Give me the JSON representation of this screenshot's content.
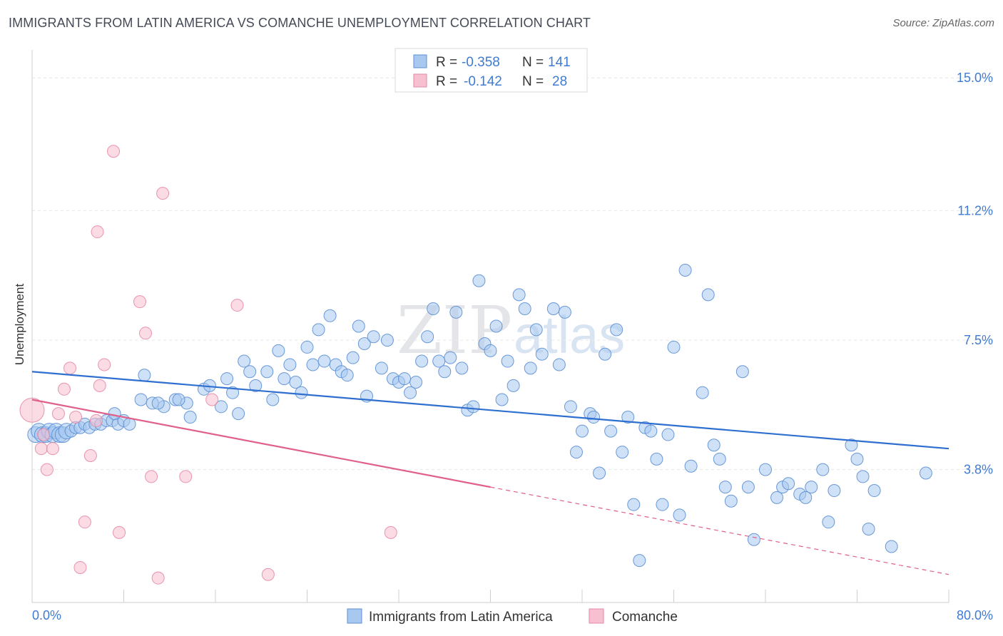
{
  "header": {
    "title": "IMMIGRANTS FROM LATIN AMERICA VS COMANCHE UNEMPLOYMENT CORRELATION CHART",
    "source": "Source: ZipAtlas.com"
  },
  "watermark": {
    "zip": "ZIP",
    "atlas": "atlas"
  },
  "stats": {
    "rows": [
      {
        "r_label": "R =",
        "r_value": "-0.358",
        "n_label": "N =",
        "n_value": "141"
      },
      {
        "r_label": "R =",
        "r_value": "-0.142",
        "n_label": "N =",
        "n_value": "28"
      }
    ]
  },
  "chart_data": {
    "type": "scatter",
    "title": "IMMIGRANTS FROM LATIN AMERICA VS COMANCHE UNEMPLOYMENT CORRELATION CHART",
    "xlabel": "",
    "ylabel": "Unemployment",
    "xlim": [
      0,
      80
    ],
    "ylim": [
      0,
      15.8
    ],
    "x_tick_labels": [
      "0.0%",
      "80.0%"
    ],
    "y_ticks": [
      3.8,
      7.5,
      11.2,
      15.0
    ],
    "y_tick_labels": [
      "3.8%",
      "7.5%",
      "11.2%",
      "15.0%"
    ],
    "grid": true,
    "legend_position": "bottom-center",
    "colors": {
      "blue_fill": "#a8c8f0",
      "blue_stroke": "#5b8fd4",
      "blue_line": "#2f6fcf",
      "pink_fill": "#f7c0d0",
      "pink_stroke": "#e58aa6",
      "pink_line": "#e0608a",
      "tick_text": "#3f7bd0"
    },
    "series": [
      {
        "name": "Immigrants from Latin America",
        "color": "blue",
        "trend": {
          "x0": 0,
          "y0": 6.6,
          "x1": 80,
          "y1": 4.4
        },
        "points": [
          [
            0.3,
            4.8
          ],
          [
            0.6,
            4.9
          ],
          [
            0.9,
            4.8
          ],
          [
            1.2,
            4.8
          ],
          [
            1.5,
            4.9
          ],
          [
            1.8,
            4.8
          ],
          [
            2.1,
            4.9
          ],
          [
            2.4,
            4.8
          ],
          [
            2.7,
            4.8
          ],
          [
            3.0,
            4.9
          ],
          [
            3.4,
            4.9
          ],
          [
            3.8,
            5.0
          ],
          [
            4.2,
            5.0
          ],
          [
            4.6,
            5.1
          ],
          [
            5.0,
            5.0
          ],
          [
            5.5,
            5.1
          ],
          [
            6.0,
            5.1
          ],
          [
            6.5,
            5.2
          ],
          [
            7.0,
            5.2
          ],
          [
            7.5,
            5.1
          ],
          [
            8.0,
            5.2
          ],
          [
            8.5,
            5.1
          ],
          [
            7.2,
            5.4
          ],
          [
            9.5,
            5.8
          ],
          [
            10.5,
            5.7
          ],
          [
            11.5,
            5.6
          ],
          [
            12.5,
            5.8
          ],
          [
            13.5,
            5.7
          ],
          [
            9.8,
            6.5
          ],
          [
            11.0,
            5.7
          ],
          [
            12.8,
            5.8
          ],
          [
            13.8,
            5.3
          ],
          [
            15.0,
            6.1
          ],
          [
            15.5,
            6.2
          ],
          [
            16.5,
            5.6
          ],
          [
            17.0,
            6.4
          ],
          [
            17.5,
            6.0
          ],
          [
            18.0,
            5.4
          ],
          [
            18.5,
            6.9
          ],
          [
            19.0,
            6.6
          ],
          [
            19.5,
            6.2
          ],
          [
            20.5,
            6.6
          ],
          [
            21.0,
            5.8
          ],
          [
            21.5,
            7.2
          ],
          [
            22.0,
            6.4
          ],
          [
            22.5,
            6.8
          ],
          [
            23.0,
            6.3
          ],
          [
            23.5,
            6.0
          ],
          [
            24.0,
            7.3
          ],
          [
            24.5,
            6.8
          ],
          [
            25.0,
            7.8
          ],
          [
            25.5,
            6.9
          ],
          [
            26.0,
            8.2
          ],
          [
            26.5,
            6.8
          ],
          [
            27.0,
            6.6
          ],
          [
            27.5,
            6.5
          ],
          [
            28.0,
            7.0
          ],
          [
            28.5,
            7.9
          ],
          [
            29.0,
            7.4
          ],
          [
            29.2,
            5.9
          ],
          [
            29.8,
            7.6
          ],
          [
            30.5,
            6.7
          ],
          [
            31.0,
            7.5
          ],
          [
            31.5,
            6.4
          ],
          [
            32.0,
            6.3
          ],
          [
            32.5,
            6.4
          ],
          [
            33.0,
            6.0
          ],
          [
            33.5,
            6.3
          ],
          [
            34.0,
            6.9
          ],
          [
            34.5,
            7.6
          ],
          [
            35.0,
            8.4
          ],
          [
            35.5,
            6.9
          ],
          [
            36.0,
            6.6
          ],
          [
            36.5,
            7.0
          ],
          [
            37.0,
            8.3
          ],
          [
            37.5,
            6.7
          ],
          [
            38.0,
            5.5
          ],
          [
            38.5,
            5.6
          ],
          [
            39.0,
            9.2
          ],
          [
            39.5,
            7.4
          ],
          [
            40.0,
            7.2
          ],
          [
            40.5,
            7.9
          ],
          [
            41.0,
            5.8
          ],
          [
            41.5,
            6.9
          ],
          [
            42.0,
            6.2
          ],
          [
            42.5,
            8.8
          ],
          [
            43.0,
            8.4
          ],
          [
            43.5,
            6.7
          ],
          [
            44.0,
            7.8
          ],
          [
            44.5,
            7.1
          ],
          [
            45.5,
            8.4
          ],
          [
            46.0,
            6.8
          ],
          [
            46.5,
            8.3
          ],
          [
            47.0,
            5.6
          ],
          [
            47.5,
            4.3
          ],
          [
            48.0,
            4.9
          ],
          [
            48.7,
            5.4
          ],
          [
            49.0,
            5.3
          ],
          [
            49.5,
            3.7
          ],
          [
            50.0,
            7.1
          ],
          [
            50.5,
            4.9
          ],
          [
            51.0,
            7.8
          ],
          [
            51.5,
            4.3
          ],
          [
            52.0,
            5.3
          ],
          [
            52.5,
            2.8
          ],
          [
            53.0,
            1.2
          ],
          [
            53.5,
            5.0
          ],
          [
            54.0,
            4.9
          ],
          [
            54.5,
            4.1
          ],
          [
            55.0,
            2.8
          ],
          [
            55.5,
            4.8
          ],
          [
            56.0,
            7.3
          ],
          [
            56.5,
            2.5
          ],
          [
            57.0,
            9.5
          ],
          [
            57.5,
            3.9
          ],
          [
            58.5,
            6.0
          ],
          [
            59.0,
            8.8
          ],
          [
            59.5,
            4.5
          ],
          [
            60.0,
            4.1
          ],
          [
            60.5,
            3.3
          ],
          [
            61.0,
            2.9
          ],
          [
            62.0,
            6.6
          ],
          [
            62.5,
            3.3
          ],
          [
            63.0,
            1.8
          ],
          [
            64.0,
            3.8
          ],
          [
            65.0,
            3.0
          ],
          [
            65.5,
            3.3
          ],
          [
            66.0,
            3.4
          ],
          [
            67.0,
            3.1
          ],
          [
            67.5,
            3.0
          ],
          [
            68.0,
            3.3
          ],
          [
            69.0,
            3.8
          ],
          [
            69.5,
            2.3
          ],
          [
            70.0,
            3.2
          ],
          [
            71.5,
            4.5
          ],
          [
            72.0,
            4.1
          ],
          [
            72.5,
            3.6
          ],
          [
            73.0,
            2.1
          ],
          [
            73.5,
            3.2
          ],
          [
            75.0,
            1.6
          ],
          [
            78.0,
            3.7
          ]
        ]
      },
      {
        "name": "Comanche",
        "color": "pink",
        "trend": {
          "x0": 0,
          "y0": 5.8,
          "x1": 40,
          "y1": 3.3,
          "dashed_to": {
            "x": 80,
            "y": 0.8
          }
        },
        "points": [
          [
            0.0,
            5.5
          ],
          [
            0.8,
            4.4
          ],
          [
            1.3,
            3.8
          ],
          [
            1.8,
            4.4
          ],
          [
            2.3,
            5.4
          ],
          [
            2.8,
            6.1
          ],
          [
            3.3,
            6.7
          ],
          [
            3.8,
            5.3
          ],
          [
            4.2,
            1.0
          ],
          [
            4.6,
            2.3
          ],
          [
            5.1,
            4.2
          ],
          [
            5.6,
            5.2
          ],
          [
            5.9,
            6.2
          ],
          [
            6.3,
            6.8
          ],
          [
            7.1,
            12.9
          ],
          [
            7.6,
            2.0
          ],
          [
            9.4,
            8.6
          ],
          [
            9.9,
            7.7
          ],
          [
            10.4,
            3.6
          ],
          [
            11.0,
            0.7
          ],
          [
            11.4,
            11.7
          ],
          [
            13.4,
            3.6
          ],
          [
            15.7,
            5.8
          ],
          [
            17.9,
            8.5
          ],
          [
            20.6,
            0.8
          ],
          [
            31.3,
            2.0
          ],
          [
            5.7,
            10.6
          ],
          [
            1.0,
            4.8
          ]
        ]
      }
    ]
  },
  "legend": {
    "items": [
      {
        "label": "Immigrants from Latin America",
        "color": "blue"
      },
      {
        "label": "Comanche",
        "color": "pink"
      }
    ]
  }
}
